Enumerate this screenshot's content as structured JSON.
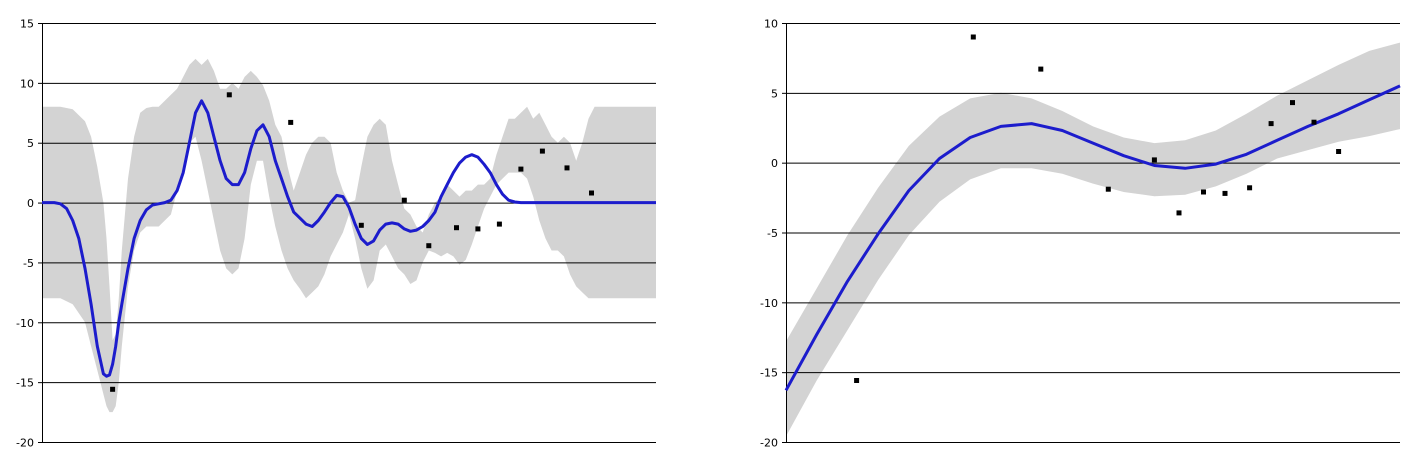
{
  "colors": {
    "band": "#d3d3d3",
    "line": "#1c1ccc",
    "points": "#000000",
    "grid": "#000000",
    "background": "#ffffff"
  },
  "chart_data": [
    {
      "type": "line",
      "title": "",
      "xlabel": "",
      "ylabel": "",
      "xlim": [
        0,
        100
      ],
      "ylim": [
        -20,
        15
      ],
      "yticks": [
        -20,
        -15,
        -10,
        -5,
        0,
        5,
        10,
        15
      ],
      "ytick_labels": [
        "-20",
        "-15",
        "-10",
        "-5",
        "0",
        "5",
        "10",
        "15"
      ],
      "grid": true,
      "legend": "none",
      "series": [
        {
          "kind": "band",
          "x": [
            0,
            3,
            5,
            7,
            8,
            9,
            10,
            10.5,
            11,
            11.5,
            12,
            12.5,
            13,
            14,
            15,
            16,
            17,
            18,
            19,
            20,
            21,
            22,
            23,
            24,
            25,
            26,
            27,
            28,
            29,
            30,
            31,
            32,
            33,
            34,
            35,
            36,
            37,
            38,
            39,
            40,
            41,
            42,
            43,
            44,
            45,
            46,
            47,
            48,
            49,
            50,
            51,
            52,
            53,
            54,
            55,
            56,
            57,
            58,
            59,
            60,
            61,
            62,
            63,
            64,
            65,
            66,
            67,
            68,
            69,
            70,
            71,
            72,
            73,
            74,
            75,
            76,
            77,
            78,
            79,
            80,
            81,
            82,
            83,
            84,
            85,
            86,
            87,
            88,
            89,
            90,
            91,
            92,
            93,
            94,
            95,
            97,
            100
          ],
          "upper": [
            8,
            8,
            7.8,
            6.8,
            5.5,
            3,
            0,
            -3,
            -7,
            -11.5,
            -11,
            -8,
            -4,
            2,
            5.5,
            7.5,
            7.9,
            8,
            8,
            8.5,
            9,
            9.5,
            10.5,
            11.5,
            12,
            11.5,
            12,
            11,
            9.5,
            9.5,
            10,
            9.5,
            10.5,
            11,
            10.5,
            9.8,
            8.5,
            6.5,
            5.5,
            3,
            1,
            2.5,
            4,
            5,
            5.5,
            5.5,
            5,
            2.5,
            1,
            0,
            0.2,
            3,
            5.5,
            6.5,
            7,
            6.5,
            3.5,
            1.5,
            -0.5,
            -1,
            -2,
            -2.5,
            -1,
            0,
            0.5,
            1.5,
            1,
            0.5,
            1,
            1,
            1.5,
            1.5,
            2,
            4,
            5.5,
            7,
            7,
            7.5,
            8,
            7,
            7.5,
            6.5,
            5.5,
            5,
            5.5,
            5,
            3.5,
            5,
            7,
            8,
            8,
            8,
            8,
            8,
            8,
            8,
            8
          ],
          "lower": [
            -8,
            -8,
            -8.5,
            -10,
            -12,
            -14,
            -16,
            -17,
            -17.5,
            -17.5,
            -17,
            -15,
            -12,
            -7,
            -4,
            -2.5,
            -2,
            -2,
            -2,
            -1.5,
            -1,
            1,
            3,
            5,
            5.5,
            3.5,
            1,
            -1.5,
            -4,
            -5.5,
            -6,
            -5.5,
            -3,
            1.5,
            3.5,
            3.5,
            0.5,
            -2,
            -4,
            -5.5,
            -6.5,
            -7.2,
            -8,
            -7.5,
            -7,
            -6,
            -4.5,
            -3.5,
            -2.5,
            -1,
            -3,
            -5.5,
            -7.2,
            -6.5,
            -4,
            -3.5,
            -4.5,
            -5.5,
            -6,
            -6.8,
            -6.5,
            -5,
            -4,
            -4.2,
            -4.5,
            -4.2,
            -4.5,
            -5.2,
            -4.8,
            -3.5,
            -2,
            -0.5,
            0.5,
            1.5,
            2,
            2.5,
            2.5,
            2.5,
            2,
            0.5,
            -1.5,
            -3,
            -4,
            -4,
            -4.5,
            -6,
            -7,
            -7.5,
            -8,
            -8,
            -8,
            -8,
            -8,
            -8,
            -8,
            -8,
            -8
          ]
        },
        {
          "kind": "line",
          "x": [
            0,
            2,
            3,
            4,
            5,
            6,
            7,
            8,
            9,
            10,
            10.5,
            11,
            11.5,
            12,
            12.5,
            13,
            14,
            15,
            16,
            17,
            18,
            19,
            20,
            21,
            22,
            23,
            24,
            25,
            26,
            27,
            28,
            29,
            30,
            31,
            32,
            33,
            34,
            35,
            36,
            37,
            38,
            39,
            40,
            41,
            42,
            43,
            44,
            45,
            46,
            47,
            48,
            49,
            50,
            51,
            52,
            53,
            54,
            55,
            56,
            57,
            58,
            59,
            60,
            61,
            62,
            63,
            64,
            65,
            66,
            67,
            68,
            69,
            70,
            71,
            72,
            73,
            74,
            75,
            76,
            77,
            78,
            79,
            80,
            81,
            82,
            83,
            84,
            85,
            86,
            87,
            88,
            89,
            90,
            91,
            92,
            94,
            97,
            100
          ],
          "values": [
            0,
            0,
            -0.1,
            -0.5,
            -1.5,
            -3,
            -5.5,
            -8.5,
            -12,
            -14.3,
            -14.5,
            -14.4,
            -13.5,
            -12,
            -10,
            -8.5,
            -5.5,
            -3,
            -1.5,
            -0.6,
            -0.2,
            -0.1,
            0,
            0.2,
            1,
            2.5,
            5,
            7.5,
            8.5,
            7.5,
            5.5,
            3.5,
            2,
            1.5,
            1.5,
            2.5,
            4.5,
            6,
            6.5,
            5.5,
            3.5,
            2,
            0.5,
            -0.8,
            -1.3,
            -1.8,
            -2,
            -1.5,
            -0.8,
            0,
            0.6,
            0.5,
            -0.4,
            -1.8,
            -3,
            -3.5,
            -3.2,
            -2.3,
            -1.8,
            -1.7,
            -1.8,
            -2.2,
            -2.4,
            -2.3,
            -2,
            -1.5,
            -0.8,
            0.5,
            1.5,
            2.5,
            3.3,
            3.8,
            4,
            3.8,
            3.2,
            2.5,
            1.5,
            0.7,
            0.2,
            0.05,
            0,
            0,
            0,
            0,
            0,
            0,
            0,
            0,
            0,
            0,
            0,
            0,
            0,
            0,
            0,
            0,
            0,
            0
          ]
        },
        {
          "kind": "points",
          "x": [
            11.5,
            30.5,
            40.5,
            52,
            59,
            63,
            67.5,
            71,
            74.5,
            78,
            81.5,
            85.5,
            89.5
          ],
          "values": [
            -15.6,
            9,
            6.7,
            -1.9,
            0.2,
            -3.6,
            -2.1,
            -2.2,
            -1.8,
            2.8,
            4.3,
            2.9,
            0.8
          ]
        }
      ]
    },
    {
      "type": "line",
      "title": "",
      "xlabel": "",
      "ylabel": "",
      "xlim": [
        0,
        100
      ],
      "ylim": [
        -20,
        10
      ],
      "yticks": [
        -20,
        -15,
        -10,
        -5,
        0,
        5,
        10
      ],
      "ytick_labels": [
        "-20",
        "-15",
        "-10",
        "-5",
        "0",
        "5",
        "10"
      ],
      "grid": true,
      "legend": "none",
      "series": [
        {
          "kind": "band",
          "x": [
            0,
            5,
            10,
            15,
            20,
            25,
            30,
            35,
            40,
            45,
            50,
            55,
            60,
            65,
            70,
            75,
            80,
            85,
            90,
            95,
            100
          ],
          "upper": [
            -12.8,
            -9,
            -5.2,
            -1.8,
            1.2,
            3.3,
            4.6,
            5,
            4.6,
            3.7,
            2.6,
            1.8,
            1.4,
            1.6,
            2.3,
            3.5,
            4.8,
            5.9,
            7,
            8,
            8.6
          ],
          "lower": [
            -19.6,
            -15.6,
            -12,
            -8.4,
            -5.2,
            -2.8,
            -1.2,
            -0.4,
            -0.4,
            -0.8,
            -1.5,
            -2.1,
            -2.4,
            -2.3,
            -1.7,
            -0.8,
            0.3,
            0.9,
            1.5,
            1.9,
            2.4
          ]
        },
        {
          "kind": "line",
          "x": [
            0,
            5,
            10,
            15,
            20,
            25,
            30,
            35,
            40,
            45,
            50,
            55,
            60,
            65,
            70,
            75,
            80,
            85,
            90,
            95,
            100
          ],
          "values": [
            -16.3,
            -12.3,
            -8.5,
            -5.1,
            -2,
            0.3,
            1.8,
            2.6,
            2.8,
            2.3,
            1.4,
            0.5,
            -0.2,
            -0.4,
            -0.1,
            0.6,
            1.6,
            2.6,
            3.5,
            4.5,
            5.5
          ]
        },
        {
          "kind": "points",
          "x": [
            11.5,
            30.5,
            41.5,
            52.5,
            60,
            64,
            68,
            71.5,
            75.5,
            79,
            82.5,
            86,
            90
          ],
          "values": [
            -15.6,
            9,
            6.7,
            -1.9,
            0.2,
            -3.6,
            -2.1,
            -2.2,
            -1.8,
            2.8,
            4.3,
            2.9,
            0.8
          ]
        }
      ]
    }
  ]
}
